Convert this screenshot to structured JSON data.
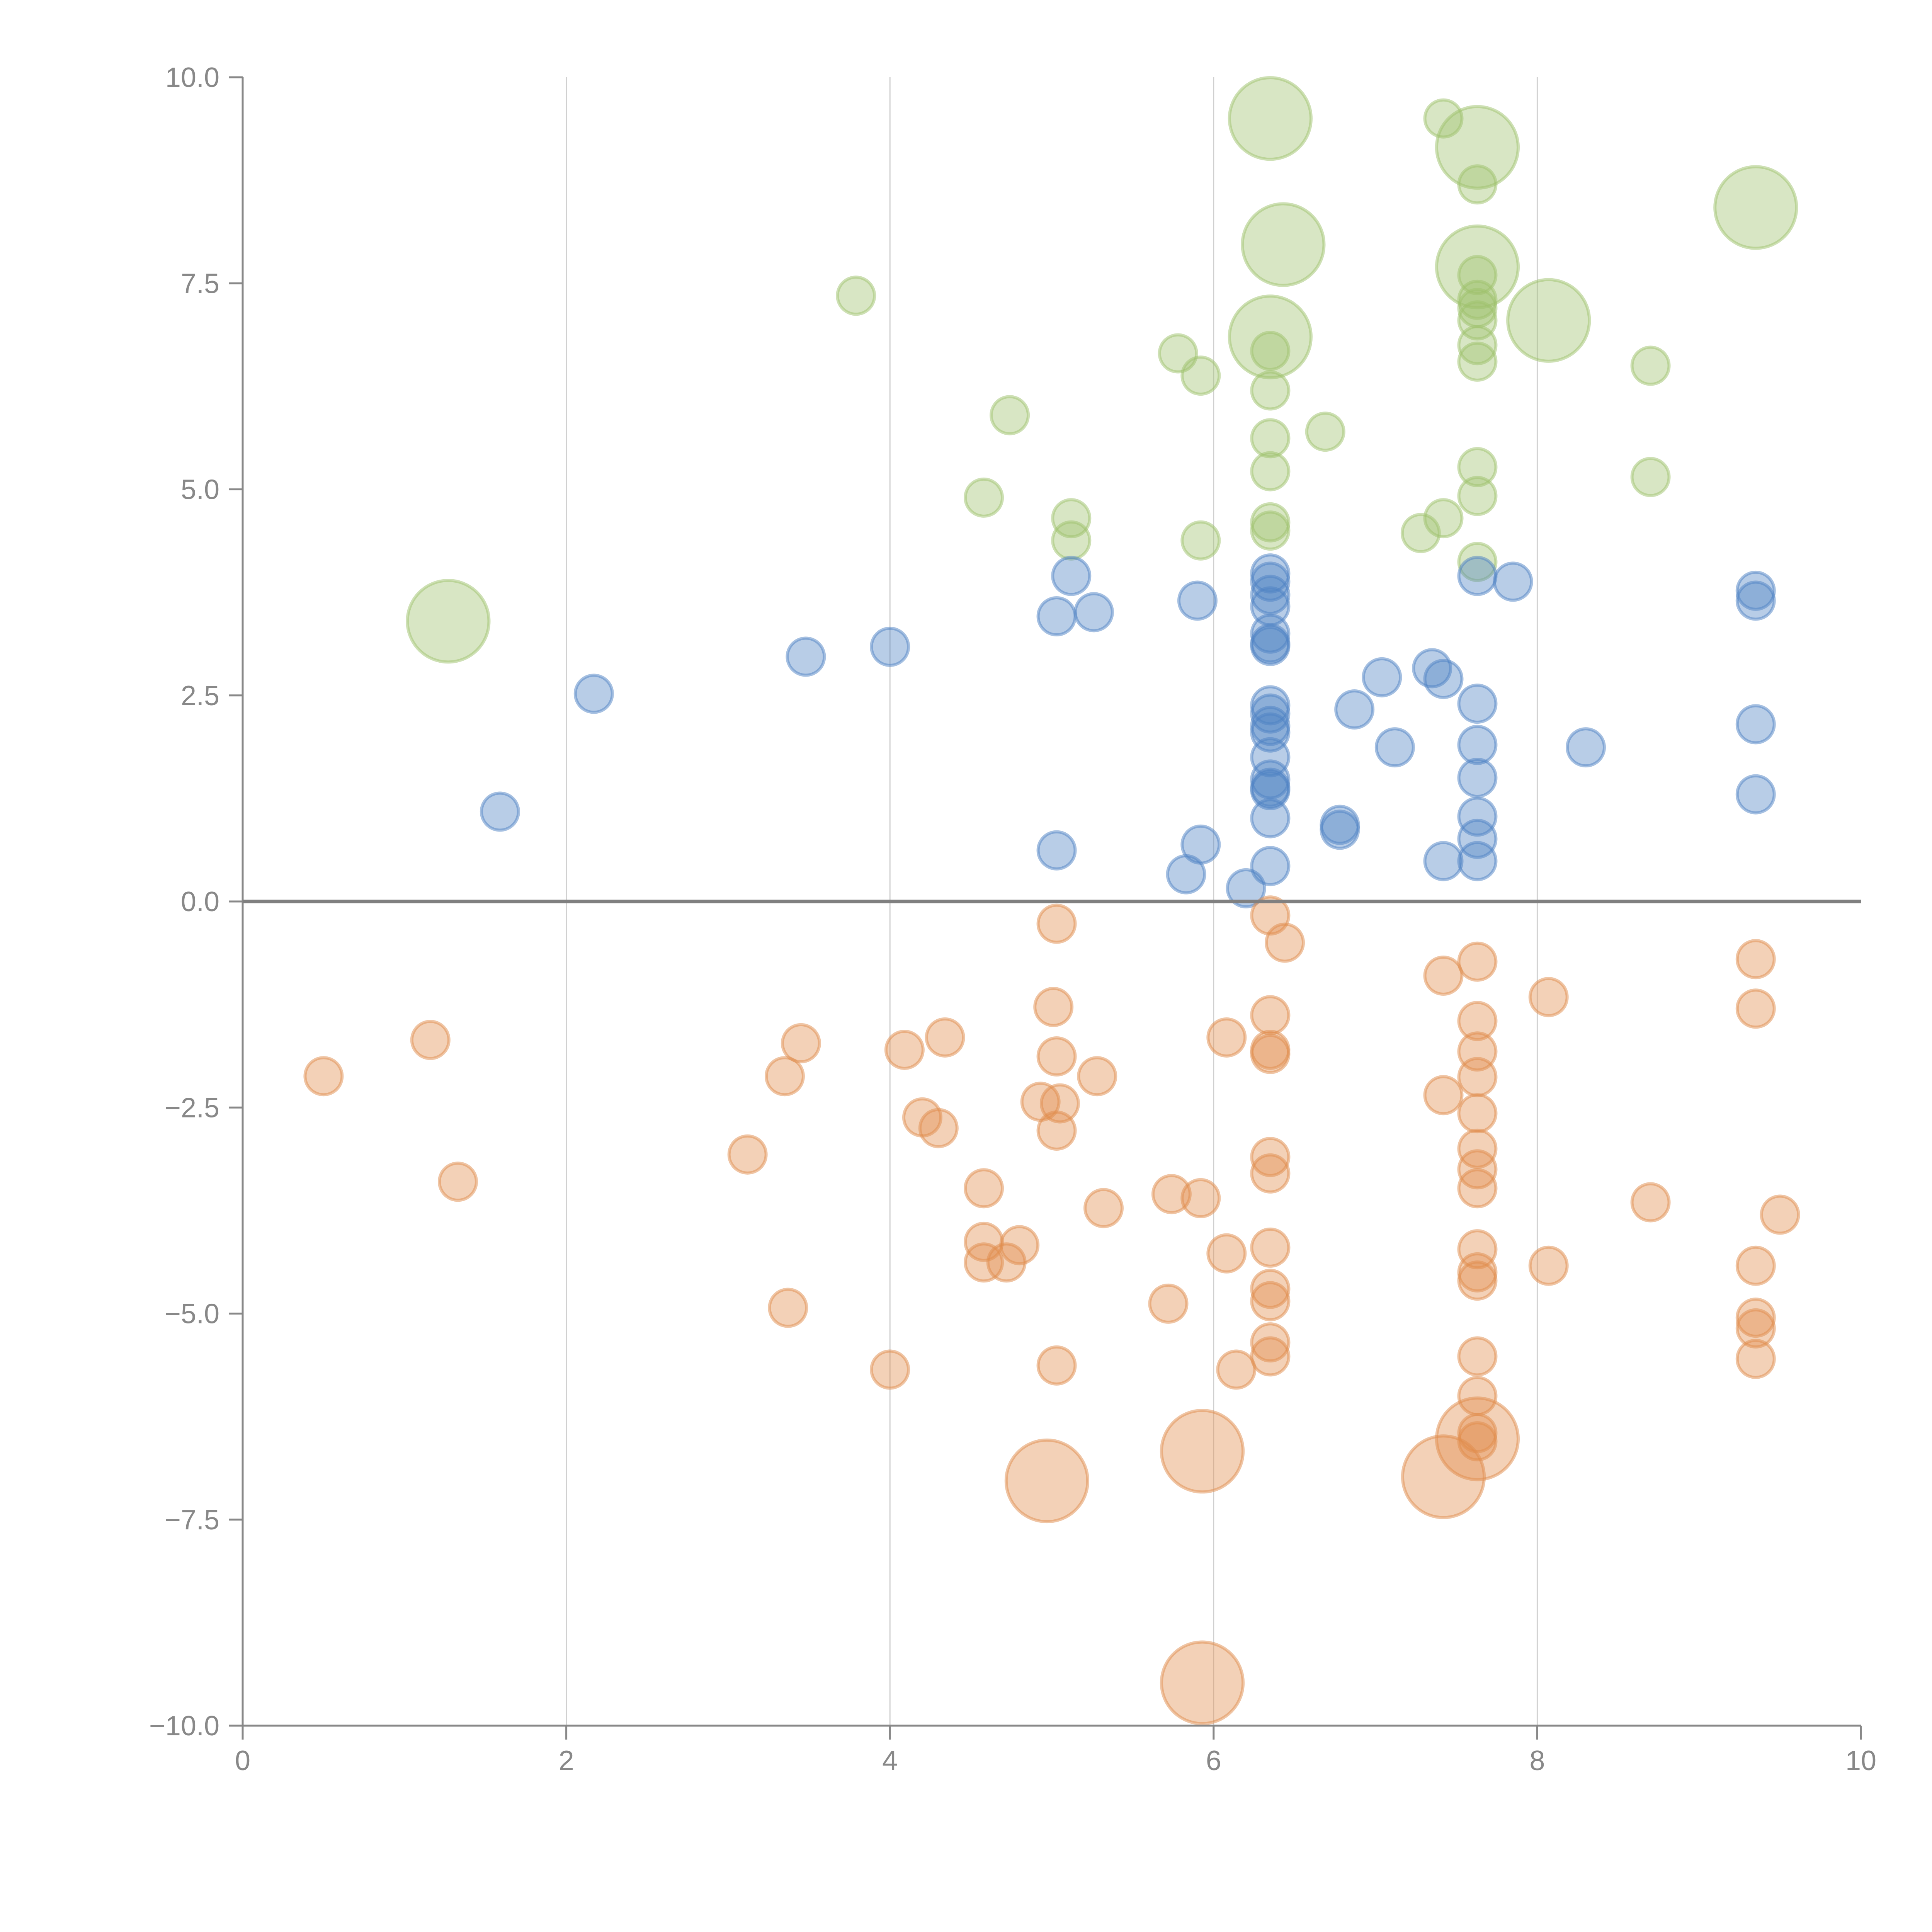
{
  "chart_data": {
    "type": "scatter",
    "title": "",
    "xlabel": "",
    "ylabel": "",
    "xlim": [
      0,
      10
    ],
    "ylim": [
      -10,
      10
    ],
    "grid": "vertical",
    "x_ticks": [
      "0",
      "2",
      "4",
      "6",
      "8",
      "10"
    ],
    "x_tick_values": [
      0,
      2,
      4,
      6,
      8,
      10
    ],
    "y_ticks": [
      "10.0",
      "7.5",
      "5.0",
      "2.5",
      "0.0",
      "−2.5",
      "−5.0",
      "−7.5",
      "−10.0"
    ],
    "y_tick_values": [
      10,
      7.5,
      5,
      2.5,
      0,
      -2.5,
      -5,
      -7.5,
      -10
    ],
    "size_units": "relative bubble size (1 = small, 2.2 = large)",
    "series": [
      {
        "name": "green",
        "color": "#9dc16b",
        "points": [
          [
            6.35,
            9.5,
            2.2
          ],
          [
            7.42,
            9.5,
            1
          ],
          [
            7.63,
            9.15,
            2.2
          ],
          [
            7.63,
            8.7,
            1
          ],
          [
            9.35,
            8.42,
            2.2
          ],
          [
            6.43,
            7.97,
            2.2
          ],
          [
            7.63,
            7.7,
            2.2
          ],
          [
            7.63,
            7.6,
            1
          ],
          [
            3.79,
            7.35,
            1
          ],
          [
            7.63,
            7.3,
            1
          ],
          [
            7.63,
            7.2,
            1
          ],
          [
            8.07,
            7.05,
            2.2
          ],
          [
            7.63,
            7.05,
            1
          ],
          [
            6.35,
            6.85,
            2.2
          ],
          [
            7.63,
            6.75,
            1
          ],
          [
            6.35,
            6.68,
            1
          ],
          [
            5.78,
            6.65,
            1
          ],
          [
            7.63,
            6.55,
            1
          ],
          [
            8.7,
            6.5,
            1
          ],
          [
            5.92,
            6.38,
            1
          ],
          [
            6.35,
            6.2,
            1
          ],
          [
            4.74,
            5.9,
            1
          ],
          [
            6.69,
            5.7,
            1
          ],
          [
            6.35,
            5.62,
            1
          ],
          [
            7.63,
            5.27,
            1
          ],
          [
            6.35,
            5.22,
            1
          ],
          [
            8.7,
            5.15,
            1
          ],
          [
            4.58,
            4.9,
            1
          ],
          [
            7.63,
            4.92,
            1
          ],
          [
            5.12,
            4.65,
            1
          ],
          [
            7.42,
            4.65,
            1
          ],
          [
            6.35,
            4.6,
            1
          ],
          [
            6.35,
            4.5,
            1
          ],
          [
            7.28,
            4.47,
            1
          ],
          [
            5.92,
            4.38,
            1
          ],
          [
            5.12,
            4.38,
            1
          ],
          [
            7.63,
            4.12,
            1
          ],
          [
            1.27,
            3.4,
            2.2
          ]
        ]
      },
      {
        "name": "blue",
        "color": "#4e81c4",
        "points": [
          [
            6.35,
            3.98,
            1
          ],
          [
            7.63,
            3.95,
            1
          ],
          [
            5.12,
            3.95,
            1
          ],
          [
            6.35,
            3.88,
            1
          ],
          [
            7.85,
            3.88,
            1
          ],
          [
            9.35,
            3.77,
            1
          ],
          [
            6.35,
            3.72,
            1
          ],
          [
            5.9,
            3.65,
            1
          ],
          [
            9.35,
            3.65,
            1
          ],
          [
            6.35,
            3.58,
            1
          ],
          [
            5.26,
            3.51,
            1
          ],
          [
            5.03,
            3.46,
            1
          ],
          [
            6.35,
            3.25,
            1
          ],
          [
            6.35,
            3.13,
            1
          ],
          [
            6.35,
            3.1,
            1
          ],
          [
            4.0,
            3.09,
            1
          ],
          [
            3.48,
            2.97,
            1
          ],
          [
            7.35,
            2.83,
            1
          ],
          [
            7.04,
            2.72,
            1
          ],
          [
            7.42,
            2.7,
            1
          ],
          [
            2.17,
            2.52,
            1
          ],
          [
            7.63,
            2.4,
            1
          ],
          [
            6.35,
            2.38,
            1
          ],
          [
            6.87,
            2.33,
            1
          ],
          [
            6.35,
            2.28,
            1
          ],
          [
            9.35,
            2.15,
            1
          ],
          [
            6.35,
            2.13,
            1
          ],
          [
            6.35,
            2.05,
            1
          ],
          [
            7.63,
            1.9,
            1
          ],
          [
            7.12,
            1.87,
            1
          ],
          [
            8.3,
            1.87,
            1
          ],
          [
            6.35,
            1.75,
            1
          ],
          [
            7.63,
            1.5,
            1
          ],
          [
            6.35,
            1.48,
            1
          ],
          [
            6.35,
            1.38,
            1
          ],
          [
            6.35,
            1.35,
            1
          ],
          [
            9.35,
            1.3,
            1
          ],
          [
            1.59,
            1.09,
            1
          ],
          [
            7.63,
            1.03,
            1
          ],
          [
            6.35,
            1.01,
            1
          ],
          [
            6.78,
            0.93,
            1
          ],
          [
            6.78,
            0.87,
            1
          ],
          [
            7.63,
            0.76,
            1
          ],
          [
            5.92,
            0.69,
            1
          ],
          [
            5.03,
            0.62,
            1
          ],
          [
            7.42,
            0.49,
            1
          ],
          [
            7.63,
            0.49,
            1
          ],
          [
            6.35,
            0.43,
            1
          ],
          [
            5.83,
            0.33,
            1
          ],
          [
            6.2,
            0.16,
            1
          ]
        ]
      },
      {
        "name": "orange",
        "color": "#e08c4c",
        "points": [
          [
            6.35,
            -0.17,
            1
          ],
          [
            5.03,
            -0.27,
            1
          ],
          [
            6.44,
            -0.5,
            1
          ],
          [
            9.35,
            -0.7,
            1
          ],
          [
            7.63,
            -0.73,
            1
          ],
          [
            7.42,
            -0.9,
            1
          ],
          [
            8.07,
            -1.16,
            1
          ],
          [
            9.35,
            -1.3,
            1
          ],
          [
            5.01,
            -1.28,
            1
          ],
          [
            6.35,
            -1.38,
            1
          ],
          [
            7.63,
            -1.45,
            1
          ],
          [
            1.16,
            -1.68,
            1
          ],
          [
            6.08,
            -1.65,
            1
          ],
          [
            4.34,
            -1.65,
            1
          ],
          [
            3.45,
            -1.72,
            1
          ],
          [
            4.09,
            -1.8,
            1
          ],
          [
            6.35,
            -1.8,
            1
          ],
          [
            6.35,
            -1.85,
            1
          ],
          [
            7.63,
            -1.82,
            1
          ],
          [
            5.03,
            -1.88,
            1
          ],
          [
            0.5,
            -2.12,
            1
          ],
          [
            3.35,
            -2.12,
            1
          ],
          [
            5.28,
            -2.12,
            1
          ],
          [
            7.63,
            -2.13,
            1
          ],
          [
            7.42,
            -2.35,
            1
          ],
          [
            4.93,
            -2.43,
            1
          ],
          [
            5.05,
            -2.45,
            1
          ],
          [
            7.63,
            -2.57,
            1
          ],
          [
            4.2,
            -2.62,
            1
          ],
          [
            4.3,
            -2.75,
            1
          ],
          [
            5.03,
            -2.78,
            1
          ],
          [
            7.63,
            -3.0,
            1
          ],
          [
            3.12,
            -3.07,
            1
          ],
          [
            6.35,
            -3.1,
            1
          ],
          [
            7.63,
            -3.25,
            1
          ],
          [
            6.35,
            -3.3,
            1
          ],
          [
            1.33,
            -3.4,
            1
          ],
          [
            4.58,
            -3.48,
            1
          ],
          [
            7.63,
            -3.48,
            1
          ],
          [
            5.74,
            -3.55,
            1
          ],
          [
            5.92,
            -3.6,
            1
          ],
          [
            8.7,
            -3.65,
            1
          ],
          [
            5.32,
            -3.72,
            1
          ],
          [
            9.5,
            -3.8,
            1
          ],
          [
            4.58,
            -4.13,
            1
          ],
          [
            4.8,
            -4.17,
            1
          ],
          [
            6.35,
            -4.2,
            1
          ],
          [
            7.63,
            -4.22,
            1
          ],
          [
            6.08,
            -4.27,
            1
          ],
          [
            4.58,
            -4.38,
            1
          ],
          [
            4.72,
            -4.38,
            1
          ],
          [
            8.07,
            -4.42,
            1
          ],
          [
            9.35,
            -4.42,
            1
          ],
          [
            7.63,
            -4.5,
            1
          ],
          [
            7.63,
            -4.6,
            1
          ],
          [
            6.35,
            -4.7,
            1
          ],
          [
            5.72,
            -4.88,
            1
          ],
          [
            6.35,
            -4.85,
            1
          ],
          [
            3.37,
            -4.93,
            1
          ],
          [
            9.35,
            -5.05,
            1
          ],
          [
            9.35,
            -5.18,
            1
          ],
          [
            6.35,
            -5.35,
            1
          ],
          [
            7.63,
            -5.52,
            1
          ],
          [
            6.35,
            -5.52,
            1
          ],
          [
            9.35,
            -5.55,
            1
          ],
          [
            5.03,
            -5.63,
            1
          ],
          [
            4.0,
            -5.68,
            1
          ],
          [
            6.14,
            -5.68,
            1
          ],
          [
            7.63,
            -6.0,
            1
          ],
          [
            7.63,
            -6.45,
            1
          ],
          [
            7.63,
            -6.55,
            1
          ],
          [
            7.63,
            -6.52,
            2.2
          ],
          [
            5.93,
            -6.67,
            2.2
          ],
          [
            4.97,
            -7.03,
            2.2
          ],
          [
            7.42,
            -6.98,
            2.2
          ],
          [
            5.93,
            -9.48,
            2.2
          ]
        ]
      }
    ]
  }
}
